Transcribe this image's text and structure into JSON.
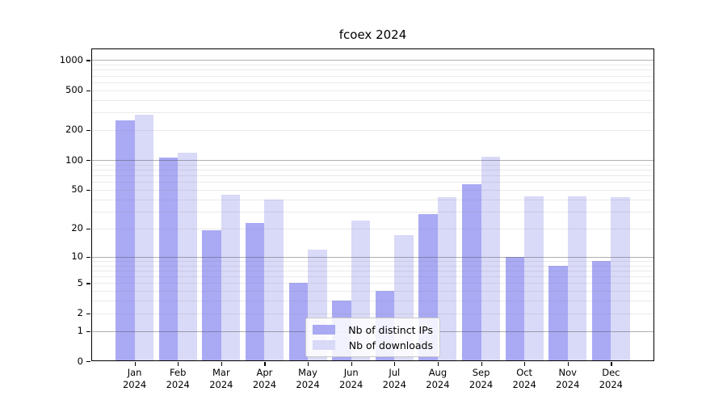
{
  "chart_data": {
    "type": "bar",
    "title": "fcoex 2024",
    "categories": [
      "Jan",
      "Feb",
      "Mar",
      "Apr",
      "May",
      "Jun",
      "Jul",
      "Aug",
      "Sep",
      "Oct",
      "Nov",
      "Dec"
    ],
    "category_year": "2024",
    "series": [
      {
        "name": "Nb of distinct IPs",
        "color": "#a9a9f4",
        "values": [
          250,
          106,
          19,
          23,
          5,
          3,
          4,
          28,
          57,
          10,
          8,
          9
        ]
      },
      {
        "name": "Nb of downloads",
        "color": "#d9d9f8",
        "values": [
          285,
          118,
          45,
          40,
          12,
          24,
          17,
          42,
          107,
          43,
          43,
          42
        ]
      }
    ],
    "xlabel": "",
    "ylabel": "",
    "y_ticks": [
      0,
      1,
      2,
      5,
      10,
      20,
      50,
      100,
      200,
      500,
      1000
    ],
    "y_scale": "log10(value+1)",
    "ylim": [
      0,
      1150
    ],
    "grid": "horizontal, minor lines at 2-9 of each decade, drawn over bars",
    "legend_position": "lower center"
  },
  "colors": {
    "background": "#ffffff",
    "axis": "#000000",
    "decade_gridline": "#a6a6a6",
    "minor_gridline": "#e9e9e9",
    "legend_border": "#c8c8c8"
  }
}
